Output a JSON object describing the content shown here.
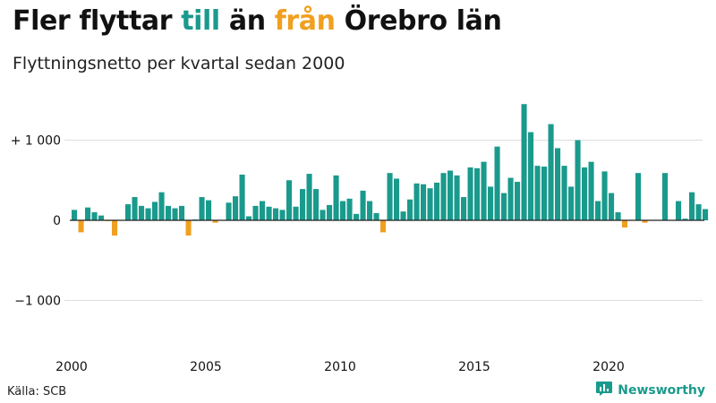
{
  "title": {
    "part1": "Fler flyttar ",
    "word_in": "till",
    "part2": " än ",
    "word_out": "från",
    "part3": " Örebro län"
  },
  "subtitle": "Flyttningsnetto per kvartal sedan 2000",
  "source": "Källa: SCB",
  "brand": {
    "name": "Newsworthy",
    "icon": "newsworthy-chart-logo-icon"
  },
  "colors": {
    "positive": "#1a9a8c",
    "negative": "#f0a020",
    "grid": "#dddddd",
    "baseline": "#222222",
    "text": "#111111"
  },
  "chart_data": {
    "type": "bar",
    "title": "Fler flyttar till än från Örebro län",
    "subtitle": "Flyttningsnetto per kvartal sedan 2000",
    "xlabel": "",
    "ylabel": "",
    "grid": true,
    "legend": "none",
    "start_year": 2000,
    "quarters_per_year": 4,
    "ylim": [
      -1550,
      1550
    ],
    "y_ticks": [
      {
        "value": 1000,
        "label": "+ 1 000"
      },
      {
        "value": 0,
        "label": "0"
      },
      {
        "value": -1000,
        "label": "−1 000"
      }
    ],
    "x_ticks": [
      "2000",
      "2005",
      "2010",
      "2015",
      "2020"
    ],
    "values": [
      130,
      -150,
      160,
      100,
      60,
      -10,
      -190,
      0,
      200,
      290,
      180,
      150,
      230,
      350,
      180,
      150,
      180,
      -190,
      10,
      290,
      250,
      -30,
      0,
      220,
      300,
      570,
      50,
      180,
      240,
      170,
      150,
      130,
      500,
      170,
      390,
      580,
      390,
      130,
      190,
      560,
      240,
      270,
      80,
      370,
      240,
      90,
      -150,
      590,
      520,
      110,
      260,
      460,
      450,
      400,
      470,
      590,
      620,
      560,
      290,
      660,
      650,
      730,
      420,
      920,
      340,
      530,
      480,
      1450,
      1100,
      680,
      670,
      1200,
      900,
      680,
      420,
      1000,
      660,
      730,
      240,
      610,
      340,
      100,
      -90,
      0,
      590,
      -30,
      0,
      0,
      590,
      0,
      240,
      20,
      350,
      200,
      140
    ]
  }
}
